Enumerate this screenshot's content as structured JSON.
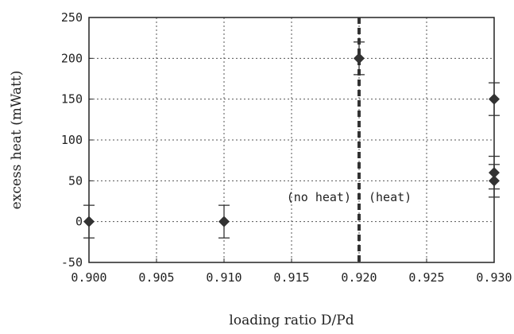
{
  "chart_data": {
    "type": "scatter",
    "title": "",
    "xlabel": "loading ratio D/Pd",
    "ylabel": "excess heat (mWatt)",
    "xlim": [
      0.9,
      0.93
    ],
    "ylim": [
      -50,
      250
    ],
    "xticks": [
      0.9,
      0.905,
      0.91,
      0.915,
      0.92,
      0.925,
      0.93
    ],
    "yticks": [
      -50,
      0,
      50,
      100,
      150,
      200,
      250
    ],
    "xtick_labels": [
      "0.900",
      "0.905",
      "0.910",
      "0.915",
      "0.920",
      "0.925",
      "0.930"
    ],
    "ytick_labels": [
      "-50",
      "0",
      "50",
      "100",
      "150",
      "200",
      "250"
    ],
    "grid": true,
    "series": [
      {
        "marker": "diamond",
        "color": "#333333",
        "points": [
          {
            "x": 0.9,
            "y": 0,
            "err": 20
          },
          {
            "x": 0.91,
            "y": 0,
            "err": 20
          },
          {
            "x": 0.92,
            "y": 200,
            "err": 20
          },
          {
            "x": 0.93,
            "y": 150,
            "err": 20
          },
          {
            "x": 0.93,
            "y": 60,
            "err": 20
          },
          {
            "x": 0.93,
            "y": 50,
            "err": 20
          }
        ]
      }
    ],
    "threshold": {
      "x": 0.92,
      "style": "dashed",
      "color": "#333333"
    },
    "annotations": {
      "left": "(no heat)",
      "right": "(heat)"
    }
  }
}
